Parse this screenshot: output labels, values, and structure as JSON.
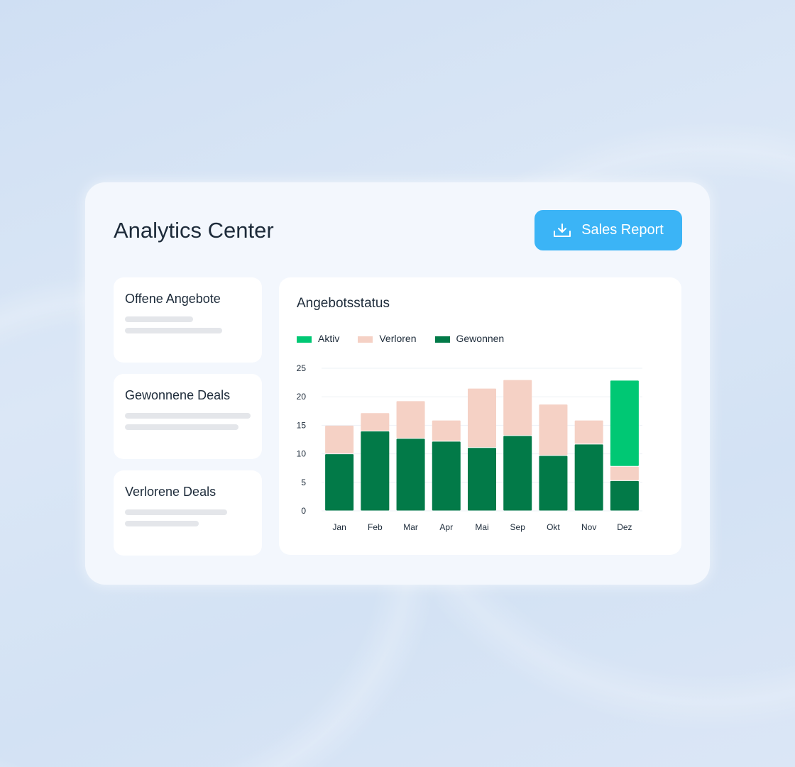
{
  "header": {
    "title": "Analytics Center",
    "report_button": "Sales Report",
    "report_icon": "download-icon"
  },
  "side_cards": [
    {
      "title": "Offene Angebote"
    },
    {
      "title": "Gewonnene Deals"
    },
    {
      "title": "Verlorene Deals"
    }
  ],
  "chart_card": {
    "title": "Angebotsstatus"
  },
  "colors": {
    "aktiv": "#00c874",
    "verloren": "#f5d1c5",
    "gewonnen": "#027a48",
    "button": "#3bb4f6"
  },
  "chart_data": {
    "type": "bar",
    "stacked": true,
    "title": "Angebotsstatus",
    "xlabel": "",
    "ylabel": "",
    "categories": [
      "Jan",
      "Feb",
      "Mar",
      "Apr",
      "Mai",
      "Sep",
      "Okt",
      "Nov",
      "Dez"
    ],
    "ylim": [
      0,
      25
    ],
    "yticks": [
      0,
      5,
      10,
      15,
      20,
      25
    ],
    "grid": true,
    "legend": "top-left",
    "series": [
      {
        "name": "Gewonnen",
        "values": [
          10,
          14,
          12.7,
          12.2,
          11.1,
          13.2,
          9.7,
          11.7,
          5.3
        ]
      },
      {
        "name": "Verloren",
        "values": [
          5,
          3.2,
          6.6,
          3.7,
          10.4,
          9.8,
          9,
          4.2,
          2.5
        ]
      },
      {
        "name": "Aktiv",
        "values": [
          0,
          0,
          0,
          0,
          0,
          0,
          0,
          0,
          15.1
        ]
      }
    ],
    "legend_order": [
      "Aktiv",
      "Verloren",
      "Gewonnen"
    ]
  }
}
